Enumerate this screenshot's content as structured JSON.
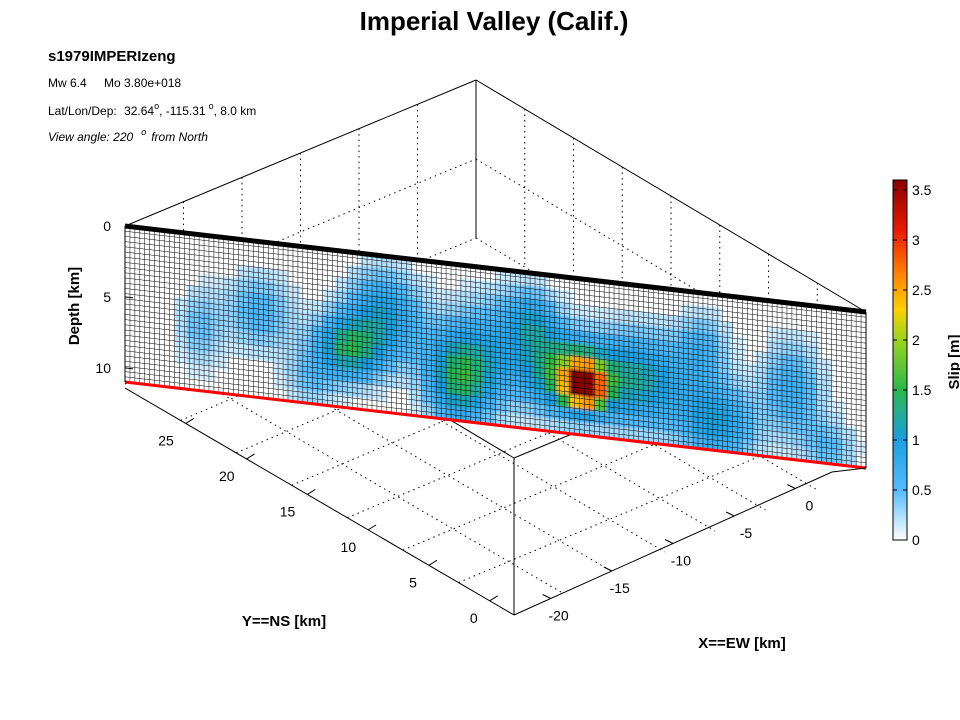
{
  "chart_data": {
    "type": "heatmap",
    "title": "Imperial Valley (Calif.)",
    "event_id": "s1979IMPERIzeng",
    "magnitude_text": "Mw 6.4",
    "moment_text": "Mo 3.80e+018",
    "location": {
      "label": "Lat/Lon/Dep:",
      "lat": "32.64",
      "lon": "-115.31",
      "degree_symbol": "o",
      "depth_text": "8.0 km"
    },
    "view_angle": {
      "prefix": "View angle: 220",
      "degree_symbol": "o",
      "suffix": "from North"
    },
    "axes": {
      "depth": {
        "label": "Depth [km]",
        "ticks": [
          0,
          5,
          10
        ],
        "range": [
          0,
          11
        ]
      },
      "y": {
        "label": "Y==NS [km]",
        "ticks": [
          0,
          5,
          10,
          15,
          20,
          25
        ],
        "range": [
          -2,
          30
        ]
      },
      "x": {
        "label": "X==EW [km]",
        "ticks": [
          -20,
          -15,
          -10,
          -5,
          0
        ],
        "range": [
          -23,
          3
        ]
      }
    },
    "colorbar": {
      "label": "Slip [m]",
      "range": [
        0,
        3.6
      ],
      "ticks": [
        "0",
        "0.5",
        "1",
        "1.5",
        "2",
        "2.5",
        "3",
        "3.5"
      ],
      "tick_values": [
        0,
        0.5,
        1,
        1.5,
        2,
        2.5,
        3,
        3.5
      ]
    },
    "fault": {
      "n_strike": 60,
      "n_dip": 12,
      "top_depth_km": 0,
      "bottom_depth_km": 11,
      "top_edge_color": "#000000",
      "bottom_edge_color": "#ff0000",
      "slip_patches": [
        {
          "s": 0.62,
          "d": 0.68,
          "a": 3.3,
          "ws": 0.025,
          "wd": 0.13
        },
        {
          "s": 0.6,
          "d": 0.62,
          "a": 1.7,
          "ws": 0.06,
          "wd": 0.25
        },
        {
          "s": 0.45,
          "d": 0.72,
          "a": 1.4,
          "ws": 0.045,
          "wd": 0.3
        },
        {
          "s": 0.3,
          "d": 0.62,
          "a": 1.3,
          "ws": 0.045,
          "wd": 0.2
        },
        {
          "s": 0.7,
          "d": 0.6,
          "a": 1.1,
          "ws": 0.06,
          "wd": 0.3
        },
        {
          "s": 0.8,
          "d": 0.82,
          "a": 1.0,
          "ws": 0.05,
          "wd": 0.25
        },
        {
          "s": 0.35,
          "d": 0.38,
          "a": 1.0,
          "ws": 0.05,
          "wd": 0.28
        },
        {
          "s": 0.55,
          "d": 0.3,
          "a": 0.8,
          "ws": 0.035,
          "wd": 0.2
        },
        {
          "s": 0.9,
          "d": 0.55,
          "a": 0.7,
          "ws": 0.04,
          "wd": 0.3
        },
        {
          "s": 0.18,
          "d": 0.45,
          "a": 0.6,
          "ws": 0.045,
          "wd": 0.25
        },
        {
          "s": 0.1,
          "d": 0.6,
          "a": 0.45,
          "ws": 0.03,
          "wd": 0.25
        },
        {
          "s": 0.78,
          "d": 0.35,
          "a": 0.55,
          "ws": 0.035,
          "wd": 0.22
        },
        {
          "s": 0.95,
          "d": 0.9,
          "a": 0.5,
          "ws": 0.035,
          "wd": 0.18
        },
        {
          "s": 0.25,
          "d": 0.85,
          "a": 0.4,
          "ws": 0.035,
          "wd": 0.18
        },
        {
          "s": 0.5,
          "d": 0.5,
          "a": 0.6,
          "ws": 0.05,
          "wd": 0.35
        }
      ]
    }
  }
}
